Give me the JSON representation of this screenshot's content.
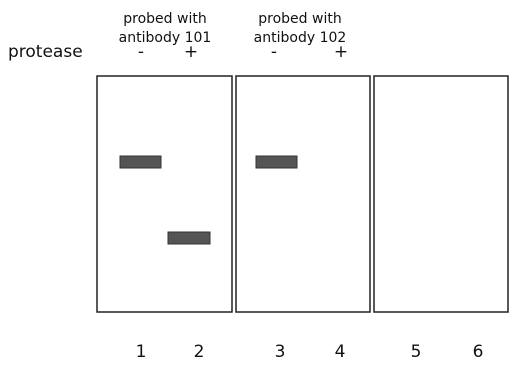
{
  "headers": [
    {
      "line1": "probed with",
      "line2": "antibody 101"
    },
    {
      "line1": "probed with",
      "line2": "antibody 102"
    }
  ],
  "protease_label": "protease",
  "protease_signs": [
    "-",
    "+",
    "-",
    "+"
  ],
  "lanes": [
    "1",
    "2",
    "3",
    "4",
    "5",
    "6"
  ]
}
